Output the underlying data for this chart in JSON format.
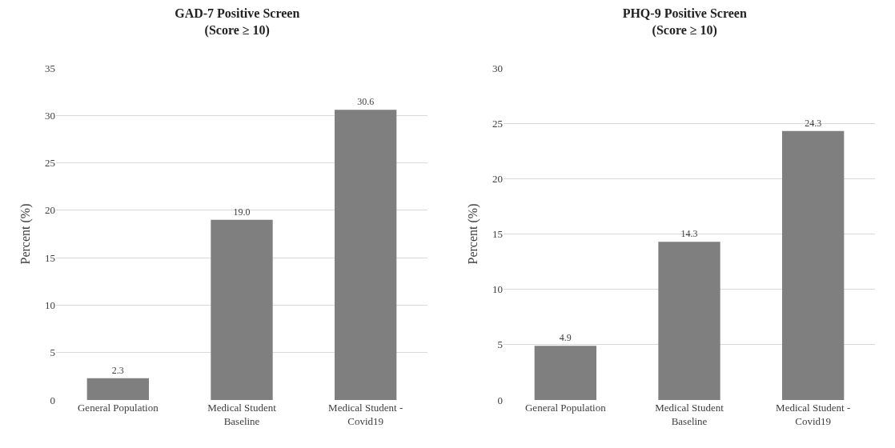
{
  "chart_data": [
    {
      "type": "bar",
      "title": "GAD-7 Positive Screen\n(Score ≥ 10)",
      "ylabel": "Percent (%)",
      "categories": [
        "General Population",
        "Medical Student Baseline",
        "Medical Student - Covid19"
      ],
      "values": [
        2.3,
        19.0,
        30.6
      ],
      "value_labels": [
        "2.3",
        "19.0",
        "30.6"
      ],
      "color": "#7f7f80",
      "ylim": [
        0,
        35
      ],
      "yticks": [
        0,
        5,
        10,
        15,
        20,
        25,
        30,
        35
      ],
      "grid": "y",
      "legend": false
    },
    {
      "type": "bar",
      "title": "PHQ-9 Positive Screen\n(Score ≥ 10)",
      "ylabel": "Percent (%)",
      "categories": [
        "General Population",
        "Medical Student Baseline",
        "Medical Student - Covid19"
      ],
      "values": [
        4.9,
        14.3,
        24.3
      ],
      "value_labels": [
        "4.9",
        "14.3",
        "24.3"
      ],
      "color": "#7f7f80",
      "ylim": [
        0,
        30
      ],
      "yticks": [
        0,
        5,
        10,
        15,
        20,
        25,
        30
      ],
      "grid": "y",
      "legend": false
    }
  ]
}
